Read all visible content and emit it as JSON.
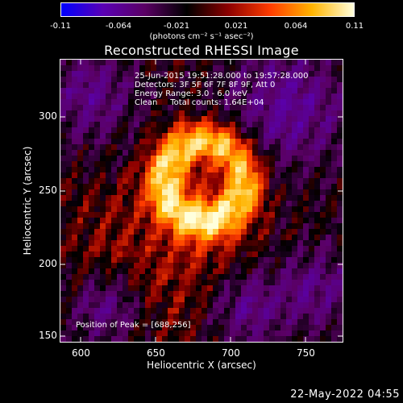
{
  "colorbar": {
    "ticks": [
      "-0.11",
      "-0.064",
      "-0.021",
      "0.021",
      "0.064",
      "0.11"
    ],
    "units": "(photons cm⁻² s⁻¹ asec⁻²)",
    "colors": [
      "#0000ff",
      "#5a00b4",
      "#5a0064",
      "#000000",
      "#8c0000",
      "#ff3c00",
      "#ffb400",
      "#ffffdc"
    ]
  },
  "title": "Reconstructed RHESSI Image",
  "info": {
    "time_range": "25-Jun-2015 19:51:28.000 to 19:57:28.000",
    "detectors": "Detectors: 3F 5F 6F 7F 8F 9F, Att 0",
    "energy": "Energy Range: 3.0 - 6.0 keV",
    "clean": "Clean     Total counts: 1.64E+04"
  },
  "peak_label": "Position of Peak = [688,256]",
  "axes": {
    "x_label": "Heliocentric X (arcsec)",
    "y_label": "Heliocentric Y (arcsec)",
    "x_ticks": [
      "600",
      "650",
      "700",
      "750"
    ],
    "y_ticks": [
      "300",
      "250",
      "200",
      "150"
    ]
  },
  "image": {
    "x_range": [
      586,
      780
    ],
    "y_range": [
      146,
      340
    ],
    "peak": [
      688,
      256
    ]
  },
  "datestamp": "22-May-2022 04:55"
}
